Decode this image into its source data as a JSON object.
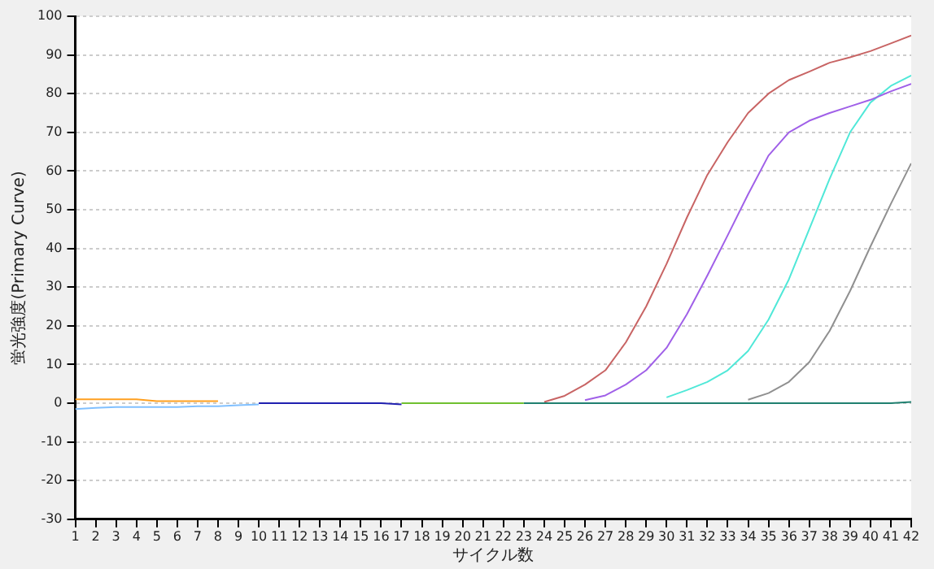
{
  "chart_data": {
    "type": "line",
    "xlabel": "サイクル数",
    "ylabel": "蛍光強度(Primary Curve)",
    "x": [
      1,
      2,
      3,
      4,
      5,
      6,
      7,
      8,
      9,
      10,
      11,
      12,
      13,
      14,
      15,
      16,
      17,
      18,
      19,
      20,
      21,
      22,
      23,
      24,
      25,
      26,
      27,
      28,
      29,
      30,
      31,
      32,
      33,
      34,
      35,
      36,
      37,
      38,
      39,
      40,
      41,
      42
    ],
    "xlim": [
      1,
      42
    ],
    "xticks": [
      1,
      2,
      3,
      4,
      5,
      6,
      7,
      8,
      9,
      10,
      11,
      12,
      13,
      14,
      15,
      16,
      17,
      18,
      19,
      20,
      21,
      22,
      23,
      24,
      25,
      26,
      27,
      28,
      29,
      30,
      31,
      32,
      33,
      34,
      35,
      36,
      37,
      38,
      39,
      40,
      41,
      42
    ],
    "ylim": [
      -30,
      100
    ],
    "yticks": [
      -30,
      -20,
      -10,
      0,
      10,
      20,
      30,
      40,
      50,
      60,
      70,
      80,
      90,
      100
    ],
    "grid": "y",
    "legend": false,
    "marker": "none",
    "line_style": "solid",
    "series": [
      {
        "color": "#ffa020",
        "values": [
          1,
          1,
          1,
          1,
          0.5,
          0.5,
          0.5,
          0.5,
          null,
          null,
          null,
          null,
          null,
          null,
          null,
          null,
          null,
          null,
          null,
          null,
          null,
          null,
          null,
          null,
          null,
          null,
          null,
          null,
          null,
          null,
          null,
          null,
          null,
          null,
          null,
          null,
          null,
          null,
          null,
          null,
          null,
          null
        ]
      },
      {
        "color": "#80c0ff",
        "values": [
          -1.5,
          -1.2,
          -1,
          -1,
          -1,
          -1,
          -0.8,
          -0.8,
          -0.5,
          -0.3,
          null,
          null,
          null,
          null,
          null,
          null,
          null,
          null,
          null,
          null,
          null,
          null,
          null,
          null,
          null,
          null,
          null,
          null,
          null,
          null,
          null,
          null,
          null,
          null,
          null,
          null,
          null,
          null,
          null,
          null,
          null,
          null
        ]
      },
      {
        "color": "#2020b0",
        "values": [
          null,
          null,
          null,
          null,
          null,
          null,
          null,
          null,
          null,
          0,
          0,
          0,
          0,
          0,
          0,
          0,
          -0.3,
          null,
          null,
          null,
          null,
          null,
          null,
          null,
          null,
          null,
          null,
          null,
          null,
          null,
          null,
          null,
          null,
          null,
          null,
          null,
          null,
          null,
          null,
          null,
          null,
          null
        ]
      },
      {
        "color": "#70c030",
        "values": [
          null,
          null,
          null,
          null,
          null,
          null,
          null,
          null,
          null,
          null,
          null,
          null,
          null,
          null,
          null,
          null,
          0,
          0,
          0,
          0,
          0,
          0,
          0,
          null,
          null,
          null,
          null,
          null,
          null,
          null,
          null,
          null,
          null,
          null,
          null,
          null,
          null,
          null,
          null,
          null,
          null,
          null
        ]
      },
      {
        "color": "#208070",
        "values": [
          null,
          null,
          null,
          null,
          null,
          null,
          null,
          null,
          null,
          null,
          null,
          null,
          null,
          null,
          null,
          null,
          null,
          null,
          null,
          null,
          null,
          null,
          0,
          0,
          0,
          0,
          0,
          0,
          0,
          0,
          0,
          0,
          0,
          0,
          0,
          0,
          0,
          0,
          0,
          0,
          0,
          0.3
        ]
      },
      {
        "color": "#c86464",
        "values": [
          null,
          null,
          null,
          null,
          null,
          null,
          null,
          null,
          null,
          null,
          null,
          null,
          null,
          null,
          null,
          null,
          null,
          null,
          null,
          null,
          null,
          null,
          null,
          0.3,
          1.9,
          4.8,
          8.5,
          15.7,
          25,
          36,
          48,
          59,
          67.5,
          75,
          80,
          83.5,
          85.7,
          88,
          89.4,
          91,
          93,
          95
        ]
      },
      {
        "color": "#a060e8",
        "values": [
          null,
          null,
          null,
          null,
          null,
          null,
          null,
          null,
          null,
          null,
          null,
          null,
          null,
          null,
          null,
          null,
          null,
          null,
          null,
          null,
          null,
          null,
          null,
          null,
          null,
          0.8,
          2,
          4.8,
          8.5,
          14.3,
          23,
          33,
          43.4,
          54,
          64,
          70,
          73,
          75,
          76.7,
          78.4,
          80.6,
          82.5
        ]
      },
      {
        "color": "#50e8d8",
        "values": [
          null,
          null,
          null,
          null,
          null,
          null,
          null,
          null,
          null,
          null,
          null,
          null,
          null,
          null,
          null,
          null,
          null,
          null,
          null,
          null,
          null,
          null,
          null,
          null,
          null,
          null,
          null,
          null,
          null,
          1.5,
          3.4,
          5.5,
          8.5,
          13.5,
          21.6,
          32,
          45,
          58,
          70,
          77.7,
          82,
          84.7
        ]
      },
      {
        "color": "#909090",
        "values": [
          null,
          null,
          null,
          null,
          null,
          null,
          null,
          null,
          null,
          null,
          null,
          null,
          null,
          null,
          null,
          null,
          null,
          null,
          null,
          null,
          null,
          null,
          null,
          null,
          null,
          null,
          null,
          null,
          null,
          null,
          null,
          null,
          null,
          0.9,
          2.6,
          5.5,
          10.6,
          18.7,
          29,
          40.5,
          51.5,
          62
        ]
      }
    ]
  }
}
